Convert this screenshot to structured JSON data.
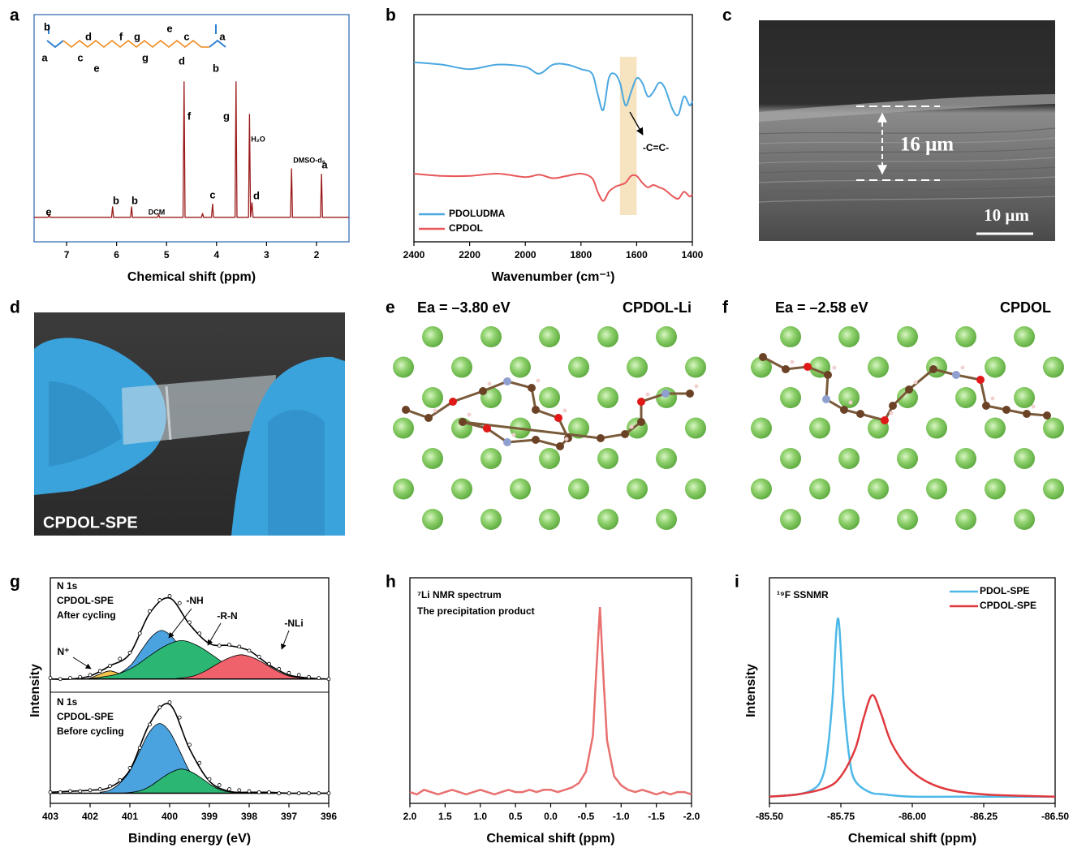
{
  "chart_data": [
    {
      "type": "nmr",
      "label": "a",
      "xlim": [
        7.65,
        1.35
      ],
      "ylim": [
        -18,
        149
      ],
      "xticks": [
        7,
        6,
        5,
        4,
        3,
        2
      ],
      "xlabel": "Chemical shift (ppm)",
      "structure_labels": [
        "b",
        "a",
        "c",
        "d",
        "e",
        "f",
        "g",
        "g",
        "e",
        "c",
        "d",
        "a",
        "b"
      ],
      "annotations": [
        "e",
        "b",
        "b",
        "DCM",
        "c",
        "f",
        "g",
        "H₂O",
        "d",
        "DMSO-d₆",
        "a"
      ],
      "color": "#9b1b1b",
      "x": [
        7.65,
        7.37,
        7.35,
        7.33,
        6.1,
        6.08,
        6.06,
        5.72,
        5.7,
        5.68,
        5.18,
        5.16,
        5.14,
        4.67,
        4.65,
        4.63,
        4.3,
        4.28,
        4.26,
        4.1,
        4.08,
        4.06,
        3.63,
        3.61,
        3.59,
        3.36,
        3.34,
        3.32,
        3.29,
        3.27,
        2.52,
        2.5,
        2.48,
        1.92,
        1.9,
        1.88,
        1.35
      ],
      "values": [
        0,
        0,
        2,
        0,
        0,
        8,
        0,
        0,
        8,
        0,
        0,
        2,
        0,
        0,
        100,
        0,
        0,
        3,
        0,
        0,
        10,
        0,
        0,
        100,
        0,
        0,
        76,
        0,
        11,
        0,
        0,
        36,
        0,
        0,
        32,
        0,
        0
      ]
    },
    {
      "type": "ir",
      "label": "b",
      "xlim": [
        2400,
        1400
      ],
      "ylim": [
        0,
        100
      ],
      "xticks": [
        2400,
        2200,
        2000,
        1800,
        1600,
        1400
      ],
      "xlabel": "Wavenumber (cm⁻¹)",
      "highlight": [
        1660,
        1600
      ],
      "annotation": "-C=C-",
      "x": [
        2400,
        2300,
        2200,
        2100,
        2000,
        1950,
        1900,
        1850,
        1800,
        1760,
        1740,
        1720,
        1700,
        1680,
        1660,
        1640,
        1620,
        1600,
        1580,
        1560,
        1540,
        1520,
        1500,
        1470,
        1450,
        1430,
        1410,
        1400
      ],
      "series": [
        {
          "name": "PDOLUDMA",
          "color": "#4aa8e0",
          "values": [
            79,
            78,
            76,
            78,
            77,
            74,
            78,
            78,
            76,
            74,
            65,
            58,
            72,
            74,
            70,
            60,
            66,
            72,
            70,
            64,
            66,
            70,
            68,
            58,
            56,
            64,
            60,
            62
          ]
        },
        {
          "name": "CPDOL",
          "color": "#e8585a",
          "values": [
            30,
            29,
            29,
            30,
            28.5,
            29.5,
            28,
            29,
            30,
            28,
            22,
            18,
            22,
            24,
            25,
            26,
            29,
            29,
            26,
            24,
            25,
            24,
            23,
            20,
            19,
            22,
            20,
            21
          ]
        }
      ]
    },
    {
      "type": "micrograph",
      "label": "c",
      "texts": [
        "16 μm",
        "10 μm"
      ]
    },
    {
      "type": "photo",
      "label": "d",
      "text": "CPDOL-SPE"
    },
    {
      "type": "structure",
      "label": "e",
      "energy": "Ea = –3.80 eV",
      "name": "CPDOL-Li"
    },
    {
      "type": "structure",
      "label": "f",
      "energy": "Ea = –2.58 eV",
      "name": "CPDOL"
    },
    {
      "type": "xps",
      "label": "g",
      "xlim": [
        403,
        396
      ],
      "xticks": [
        403,
        402,
        401,
        400,
        399,
        398,
        397,
        396
      ],
      "xlabel": "Binding energy (eV)",
      "ylabel": "Intensity",
      "subplots": [
        {
          "texts": [
            "N 1s",
            "CPDOL-SPE",
            "After cycling"
          ],
          "ylim": [
            -13,
            100
          ],
          "annotations": [
            "-NH",
            "-R-N",
            "-NLi",
            "N⁺"
          ],
          "components": [
            {
              "color": "#f2c14e",
              "x": [
                402.25,
                402,
                401.75,
                401.5,
                401.25,
                401,
                400.75
              ],
              "values": [
                0,
                1,
                5,
                8,
                5,
                1,
                0
              ]
            },
            {
              "color": "#4aa3df",
              "x": [
                401.7,
                401.45,
                401.2,
                400.95,
                400.7,
                400.45,
                400.2,
                399.95,
                399.7,
                399.45,
                399.2,
                398.95,
                398.7
              ],
              "values": [
                0,
                2,
                7,
                15,
                29,
                42,
                48,
                42,
                29,
                15,
                7,
                2,
                0
              ]
            },
            {
              "color": "#2bb673",
              "x": [
                402.1,
                401.7,
                401.3,
                400.9,
                400.5,
                400.1,
                399.7,
                399.3,
                398.9,
                398.5,
                398.1,
                397.7,
                397.3
              ],
              "values": [
                0,
                2,
                5,
                12,
                23,
                33,
                38,
                33,
                23,
                12,
                5,
                2,
                0
              ]
            },
            {
              "color": "#f0626b",
              "x": [
                400,
                399.7,
                399.4,
                399.1,
                398.8,
                398.5,
                398.2,
                397.9,
                397.6,
                397.3,
                397,
                396.7,
                396.4
              ],
              "values": [
                0,
                1,
                3,
                8,
                15,
                21,
                24,
                21,
                15,
                8,
                3,
                1,
                0
              ]
            }
          ],
          "envelope": {
            "x": [
              403,
              402.5,
              402,
              401.5,
              401,
              400.5,
              400,
              399.5,
              399,
              398.5,
              398,
              397.5,
              397,
              396.5,
              396
            ],
            "values": [
              0,
              0,
              3,
              13,
              25,
              65,
              80,
              54,
              35,
              33,
              28,
              14,
              4,
              1,
              0
            ]
          },
          "points": {
            "x": [
              403,
              402.75,
              402.5,
              402.25,
              402,
              401.75,
              401.5,
              401.25,
              401,
              400.75,
              400.5,
              400.25,
              400,
              399.75,
              399.5,
              399.25,
              399,
              398.75,
              398.5,
              398.25,
              398,
              397.75,
              397.5,
              397.25,
              397,
              396.75,
              396.5,
              396.25,
              396
            ],
            "values": [
              1,
              0,
              1,
              2,
              4,
              8,
              13,
              20,
              26,
              45,
              67,
              78,
              82,
              75,
              56,
              45,
              36,
              33,
              34,
              32,
              28,
              22,
              15,
              10,
              6,
              4,
              2,
              1,
              0
            ]
          }
        },
        {
          "texts": [
            "N 1s",
            "CPDOL-SPE",
            "Before cycling"
          ],
          "ylim": [
            -10,
            100
          ],
          "annotations": [],
          "components": [
            {
              "color": "#4aa3df",
              "x": [
                401.75,
                401.5,
                401.25,
                401,
                400.75,
                400.5,
                400.25,
                400,
                399.75,
                399.5,
                399.25,
                399,
                398.75
              ],
              "values": [
                1,
                3,
                10,
                22,
                42,
                61,
                69,
                61,
                42,
                22,
                10,
                3,
                1
              ]
            },
            {
              "color": "#2bb673",
              "x": [
                401.2,
                400.95,
                400.7,
                400.45,
                400.2,
                399.95,
                399.7,
                399.45,
                399.2,
                398.95,
                398.7,
                398.45,
                398.2
              ],
              "values": [
                0,
                1,
                3,
                8,
                15,
                21,
                24,
                21,
                15,
                8,
                3,
                1,
                0
              ]
            }
          ],
          "envelope": {
            "x": [
              403,
              402.5,
              402,
              401.5,
              401,
              400.5,
              400,
              399.5,
              399,
              398.5,
              398,
              397.5,
              397,
              396.5,
              396
            ],
            "values": [
              1,
              2,
              3,
              6,
              23,
              69,
              88,
              44,
              12,
              2,
              1,
              1,
              0,
              0,
              0
            ]
          },
          "points": {
            "x": [
              403,
              402.75,
              402.5,
              402.25,
              402,
              401.75,
              401.5,
              401.25,
              401,
              400.75,
              400.5,
              400.25,
              400,
              399.75,
              399.5,
              399.25,
              399,
              398.75,
              398.5,
              398.25,
              398,
              397.75,
              397.5,
              397.25,
              397,
              396.75,
              396.5,
              396.25,
              396
            ],
            "values": [
              1,
              1,
              2,
              2,
              3,
              4,
              7,
              13,
              25,
              45,
              68,
              85,
              90,
              75,
              48,
              30,
              14,
              8,
              4,
              3,
              2,
              1,
              1,
              0,
              0,
              0,
              0,
              0,
              0
            ]
          }
        }
      ]
    },
    {
      "type": "line",
      "label": "h",
      "xlim": [
        2,
        -2
      ],
      "ylim": [
        0,
        100
      ],
      "xticks": [
        {
          "value": 2,
          "label": "2.0"
        },
        1.5,
        {
          "value": 1,
          "label": "1.0"
        },
        0.5,
        {
          "value": 0,
          "label": "0.0"
        },
        -0.5,
        {
          "value": -1,
          "label": "-1.0"
        },
        -1.5,
        {
          "value": -2,
          "label": "-2.0"
        }
      ],
      "xlabel": "Chemical shift (ppm)",
      "texts": [
        "⁷Li NMR spectrum",
        "The precipitation product"
      ],
      "series": [
        {
          "color": "#e8706f",
          "x": [
            2,
            1.9,
            1.8,
            1.7,
            1.6,
            1.5,
            1.4,
            1.3,
            1.2,
            1.1,
            1,
            0.9,
            0.8,
            0.7,
            0.6,
            0.5,
            0.4,
            0.3,
            0.2,
            0.1,
            0,
            -0.1,
            -0.2,
            -0.3,
            -0.4,
            -0.5,
            -0.6,
            -0.65,
            -0.7,
            -0.75,
            -0.8,
            -0.9,
            -1,
            -1.1,
            -1.2,
            -1.3,
            -1.4,
            -1.5,
            -1.6,
            -1.7,
            -1.8,
            -1.9,
            -2
          ],
          "values": [
            5,
            4,
            6,
            5,
            4,
            5,
            6,
            5,
            4,
            5,
            6,
            5,
            4,
            5,
            6,
            5,
            5,
            6,
            5,
            6,
            6,
            5,
            6,
            7,
            9,
            14,
            30,
            60,
            87,
            55,
            28,
            12,
            8,
            6,
            5,
            6,
            5,
            4,
            5,
            4,
            5,
            5,
            4
          ]
        }
      ]
    },
    {
      "type": "line",
      "label": "i",
      "xlim": [
        -85.5,
        -86.5
      ],
      "ylim": [
        0,
        100
      ],
      "xticks": [
        {
          "value": -85.5,
          "label": "-85.50"
        },
        -85.75,
        {
          "value": -86,
          "label": "-86.00"
        },
        -86.25,
        {
          "value": -86.5,
          "label": "-86.50"
        }
      ],
      "xlabel": "Chemical shift (ppm)",
      "ylabel": "Intensity",
      "texts": [
        "¹⁹F SSNMR"
      ],
      "legend": "top-right",
      "series": [
        {
          "name": "PDOL-SPE",
          "color": "#4db8e8",
          "x": [
            -85.5,
            -85.6,
            -85.65,
            -85.68,
            -85.7,
            -85.72,
            -85.74,
            -85.76,
            -85.78,
            -85.8,
            -85.85,
            -85.9,
            -86,
            -86.25,
            -86.5
          ],
          "values": [
            3,
            4,
            6,
            10,
            20,
            45,
            82,
            45,
            20,
            10,
            5,
            4,
            3,
            3,
            3
          ]
        },
        {
          "name": "CPDOL-SPE",
          "color": "#e0393e",
          "x": [
            -85.5,
            -85.6,
            -85.7,
            -85.75,
            -85.8,
            -85.83,
            -85.86,
            -85.89,
            -85.93,
            -86,
            -86.1,
            -86.25,
            -86.5
          ],
          "values": [
            3,
            4,
            7,
            12,
            24,
            38,
            48,
            40,
            26,
            14,
            7,
            4,
            3
          ]
        }
      ]
    }
  ]
}
